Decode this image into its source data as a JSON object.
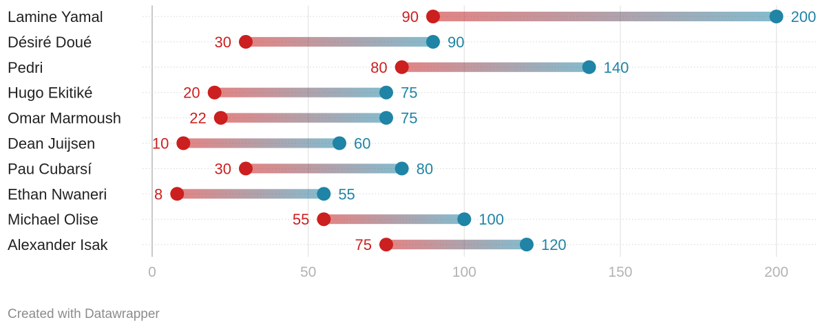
{
  "chart_data": {
    "type": "dumbbell",
    "title": "",
    "xlabel": "",
    "ylabel": "",
    "xlim": [
      0,
      210
    ],
    "x_ticks": [
      0,
      50,
      100,
      150,
      200
    ],
    "grid": true,
    "categories": [
      "Lamine Yamal",
      "Désiré Doué",
      "Pedri",
      "Hugo Ekitiké",
      "Omar Marmoush",
      "Dean Juijsen",
      "Pau Cubarsí",
      "Ethan Nwaneri",
      "Michael Olise",
      "Alexander Isak"
    ],
    "series": [
      {
        "name": "start",
        "color": "#cc1f1f",
        "values": [
          90,
          30,
          80,
          20,
          22,
          10,
          30,
          8,
          55,
          75
        ]
      },
      {
        "name": "end",
        "color": "#1f84a5",
        "values": [
          200,
          90,
          140,
          75,
          75,
          60,
          80,
          55,
          100,
          120
        ]
      }
    ]
  },
  "footer": {
    "credit": "Created with Datawrapper"
  },
  "colors": {
    "start": "#cc1f1f",
    "end": "#1f84a5",
    "grid": "#e3e3e3",
    "axis": "#c8c8c8",
    "tick_text": "#b3b3b3"
  }
}
